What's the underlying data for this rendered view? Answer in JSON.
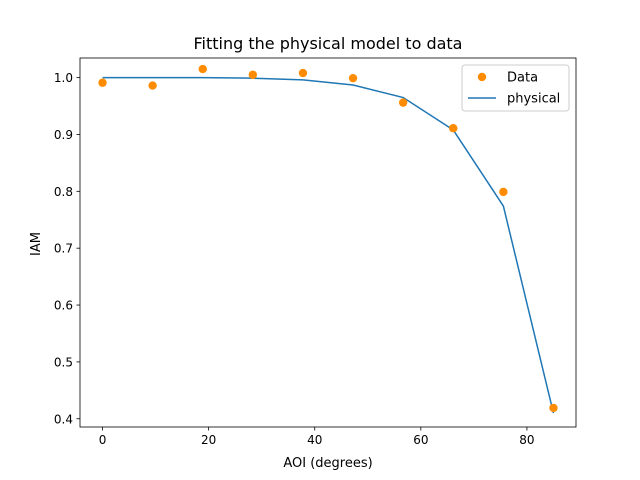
{
  "chart_data": {
    "type": "scatter",
    "title": "Fitting the physical model to data",
    "xlabel": "AOI (degrees)",
    "ylabel": "IAM",
    "xlim": [
      -4.25,
      89.25
    ],
    "ylim": [
      0.3855,
      1.0345
    ],
    "xticks": [
      0,
      20,
      40,
      60,
      80
    ],
    "yticks": [
      0.4,
      0.5,
      0.6,
      0.7,
      0.8,
      0.9,
      1.0
    ],
    "legend": "top-right",
    "series": [
      {
        "name": "Data",
        "type": "scatter",
        "color": "#ff8c00",
        "x": [
          0,
          9.44,
          18.89,
          28.33,
          37.78,
          47.22,
          56.67,
          66.11,
          75.56,
          85
        ],
        "y": [
          0.991,
          0.986,
          1.015,
          1.005,
          1.008,
          0.999,
          0.956,
          0.911,
          0.799,
          0.419
        ]
      },
      {
        "name": "physical",
        "type": "line",
        "color": "#1f77b4",
        "x": [
          0,
          9.44,
          18.89,
          28.33,
          37.78,
          47.22,
          56.67,
          66.11,
          75.56,
          85
        ],
        "y": [
          1.0,
          1.0,
          1.0,
          0.999,
          0.996,
          0.987,
          0.965,
          0.908,
          0.774,
          0.41
        ]
      }
    ]
  }
}
